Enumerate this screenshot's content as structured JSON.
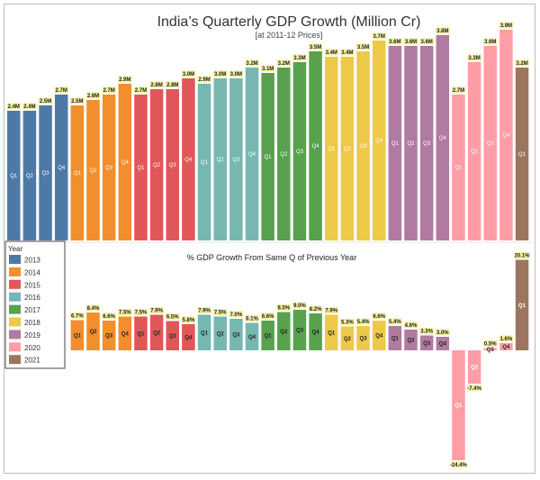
{
  "chart_data": [
    {
      "type": "bar",
      "title": "India’s Quarterly GDP Growth (Million Cr)",
      "subtitle": "[at 2011-12 Prices]",
      "categories": [
        "Q1",
        "Q2",
        "Q3",
        "Q4",
        "Q1",
        "Q2",
        "Q3",
        "Q4",
        "Q1",
        "Q2",
        "Q3",
        "Q4",
        "Q1",
        "Q2",
        "Q3",
        "Q4",
        "Q1",
        "Q2",
        "Q3",
        "Q4",
        "Q1",
        "Q2",
        "Q3",
        "Q4",
        "Q1",
        "Q2",
        "Q3",
        "Q4",
        "Q1",
        "Q2",
        "Q3",
        "Q4",
        "Q1"
      ],
      "years": [
        "2013",
        "2013",
        "2013",
        "2013",
        "2014",
        "2014",
        "2014",
        "2014",
        "2015",
        "2015",
        "2015",
        "2015",
        "2016",
        "2016",
        "2016",
        "2016",
        "2017",
        "2017",
        "2017",
        "2017",
        "2018",
        "2018",
        "2018",
        "2018",
        "2019",
        "2019",
        "2019",
        "2019",
        "2020",
        "2020",
        "2020",
        "2020",
        "2021"
      ],
      "values": [
        2.4,
        2.4,
        2.5,
        2.7,
        2.5,
        2.6,
        2.7,
        2.9,
        2.7,
        2.8,
        2.8,
        3.0,
        2.9,
        3.0,
        3.0,
        3.2,
        3.1,
        3.2,
        3.3,
        3.5,
        3.4,
        3.4,
        3.5,
        3.7,
        3.6,
        3.6,
        3.6,
        3.8,
        2.7,
        3.3,
        3.6,
        3.9,
        3.2
      ],
      "labels": [
        "2.4M",
        "2.4M",
        "2.5M",
        "2.7M",
        "2.5M",
        "2.6M",
        "2.7M",
        "2.9M",
        "2.7M",
        "2.8M",
        "2.8M",
        "3.0M",
        "2.9M",
        "3.0M",
        "3.0M",
        "3.2M",
        "3.1M",
        "3.2M",
        "3.3M",
        "3.5M",
        "3.4M",
        "3.4M",
        "3.5M",
        "3.7M",
        "3.6M",
        "3.6M",
        "3.6M",
        "3.8M",
        "2.7M",
        "3.3M",
        "3.6M",
        "3.9M",
        "3.2M"
      ],
      "ylim": [
        0,
        4.0
      ]
    },
    {
      "type": "bar",
      "title": "% GDP Growth From Same Q of Previous Year",
      "categories": [
        "Q1",
        "Q2",
        "Q3",
        "Q4",
        "Q1",
        "Q2",
        "Q3",
        "Q4",
        "Q1",
        "Q2",
        "Q3",
        "Q4",
        "Q1",
        "Q2",
        "Q3",
        "Q4",
        "Q1",
        "Q2",
        "Q3",
        "Q4",
        "Q1",
        "Q2",
        "Q3",
        "Q4",
        "Q1",
        "Q2",
        "Q3",
        "Q4",
        "Q1"
      ],
      "years": [
        "2014",
        "2014",
        "2014",
        "2014",
        "2015",
        "2015",
        "2015",
        "2015",
        "2016",
        "2016",
        "2016",
        "2016",
        "2017",
        "2017",
        "2017",
        "2017",
        "2018",
        "2018",
        "2018",
        "2018",
        "2019",
        "2019",
        "2019",
        "2019",
        "2020",
        "2020",
        "2020",
        "2020",
        "2021"
      ],
      "values": [
        6.7,
        8.4,
        6.6,
        7.5,
        7.5,
        7.9,
        6.5,
        5.8,
        7.9,
        7.5,
        7.0,
        6.1,
        6.6,
        8.5,
        9.0,
        8.2,
        7.9,
        5.3,
        5.4,
        6.6,
        5.4,
        4.6,
        3.3,
        3.0,
        -24.4,
        -7.4,
        0.5,
        1.6,
        20.1
      ],
      "labels": [
        "6.7%",
        "8.4%",
        "6.6%",
        "7.5%",
        "7.5%",
        "7.9%",
        "6.5%",
        "5.8%",
        "7.9%",
        "7.5%",
        "7.0%",
        "6.1%",
        "6.6%",
        "8.5%",
        "9.0%",
        "8.2%",
        "7.9%",
        "5.3%",
        "5.4%",
        "6.6%",
        "5.4%",
        "4.6%",
        "3.3%",
        "3.0%",
        "-24.4%",
        "-7.4%",
        "0.5%",
        "1.6%",
        "20.1%"
      ],
      "ylim": [
        -25,
        21
      ]
    }
  ],
  "legend": {
    "title": "Year",
    "items": [
      {
        "year": "2013",
        "color": "#4e79a7"
      },
      {
        "year": "2014",
        "color": "#f28e2b"
      },
      {
        "year": "2015",
        "color": "#e15759"
      },
      {
        "year": "2016",
        "color": "#76b7b2"
      },
      {
        "year": "2017",
        "color": "#59a14f"
      },
      {
        "year": "2018",
        "color": "#edc948"
      },
      {
        "year": "2019",
        "color": "#b07aa1"
      },
      {
        "year": "2020",
        "color": "#ff9da7"
      },
      {
        "year": "2021",
        "color": "#9c755f"
      }
    ]
  }
}
